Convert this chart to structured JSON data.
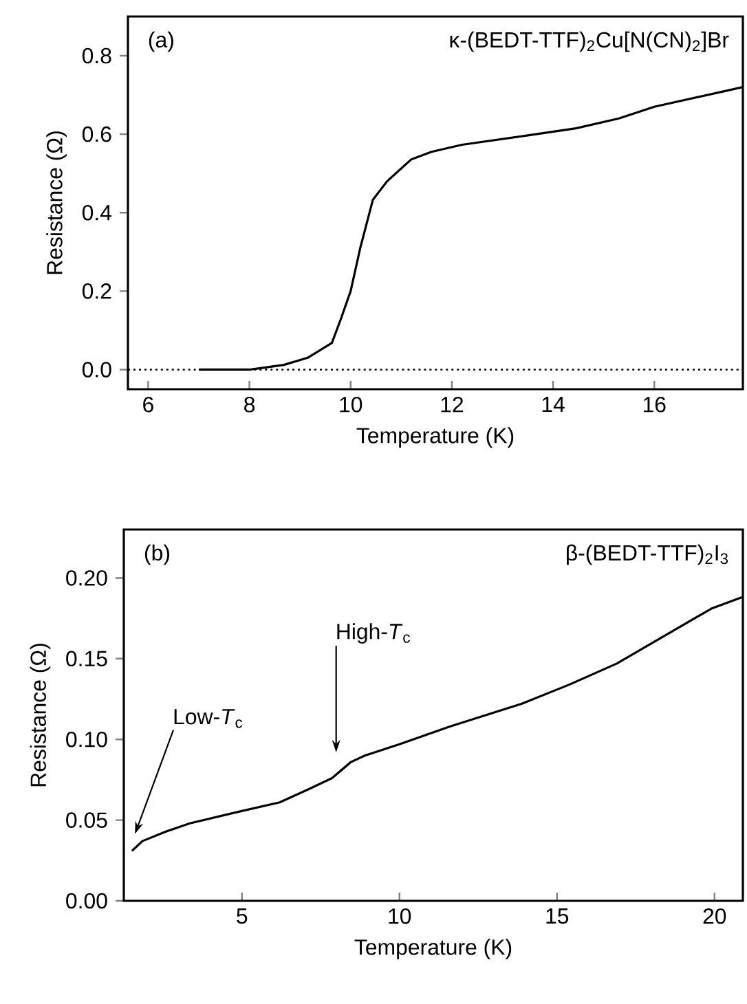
{
  "chart_data": [
    {
      "type": "line",
      "title": "(a)",
      "subtitle": "κ-(BEDT-TTF)$_{2}$Cu[N(CN)$_{2}$]Br",
      "xlabel": "Temperature (K)",
      "ylabel": "Resistance (Ω)",
      "color": "#000000",
      "x": [
        7,
        8,
        8.12,
        8.68,
        9.15,
        9.63,
        9.81,
        10.0,
        10.19,
        10.44,
        10.72,
        11.2,
        11.6,
        12.2,
        13.5,
        14.45,
        15.3,
        16.0,
        17.75
      ],
      "values": [
        0,
        0,
        0.002,
        0.012,
        0.03,
        0.068,
        0.13,
        0.2,
        0.31,
        0.433,
        0.48,
        0.536,
        0.555,
        0.573,
        0.597,
        0.615,
        0.64,
        0.67,
        0.72
      ],
      "xlim": [
        5.6,
        17.75
      ],
      "ylim": [
        -0.05,
        0.9
      ],
      "xticks": [
        6,
        8,
        10,
        12,
        14,
        16
      ],
      "yticks": [
        {
          "value": 0,
          "label": "0.0"
        },
        0.2,
        0.4,
        0.6,
        0.8
      ],
      "ref_lines": [
        {
          "axis": "y",
          "value": 0,
          "line_style": "dotted"
        }
      ]
    },
    {
      "type": "line",
      "title": "(b)",
      "subtitle": "β-(BEDT-TTF)$_{2}$I$_{3}$",
      "xlabel": "Temperature (K)",
      "ylabel": "Resistance (Ω)",
      "color": "#000000",
      "x": [
        1.51,
        1.84,
        2.6,
        3.35,
        4.85,
        6.2,
        7.1,
        7.86,
        8.46,
        8.9,
        10,
        11.6,
        13.87,
        15.4,
        16.9,
        18.4,
        19.9,
        20.87
      ],
      "values": [
        0.031,
        0.037,
        0.043,
        0.048,
        0.055,
        0.061,
        0.069,
        0.076,
        0.086,
        0.09,
        0.097,
        0.108,
        0.122,
        0.134,
        0.147,
        0.164,
        0.181,
        0.188
      ],
      "xlim": [
        1.25,
        20.9
      ],
      "ylim": [
        0,
        0.23
      ],
      "xticks": [
        5,
        10,
        15,
        20
      ],
      "yticks": [
        {
          "value": 0,
          "label": "0.00"
        },
        {
          "value": 0.05,
          "label": "0.05"
        },
        {
          "value": 0.1,
          "label": "0.10"
        },
        {
          "value": 0.15,
          "label": "0.15"
        },
        {
          "value": 0.2,
          "label": "0.20"
        }
      ],
      "annotations": [
        "Low-*T*$_{c}$",
        "High-*T*$_{c}$"
      ]
    }
  ]
}
